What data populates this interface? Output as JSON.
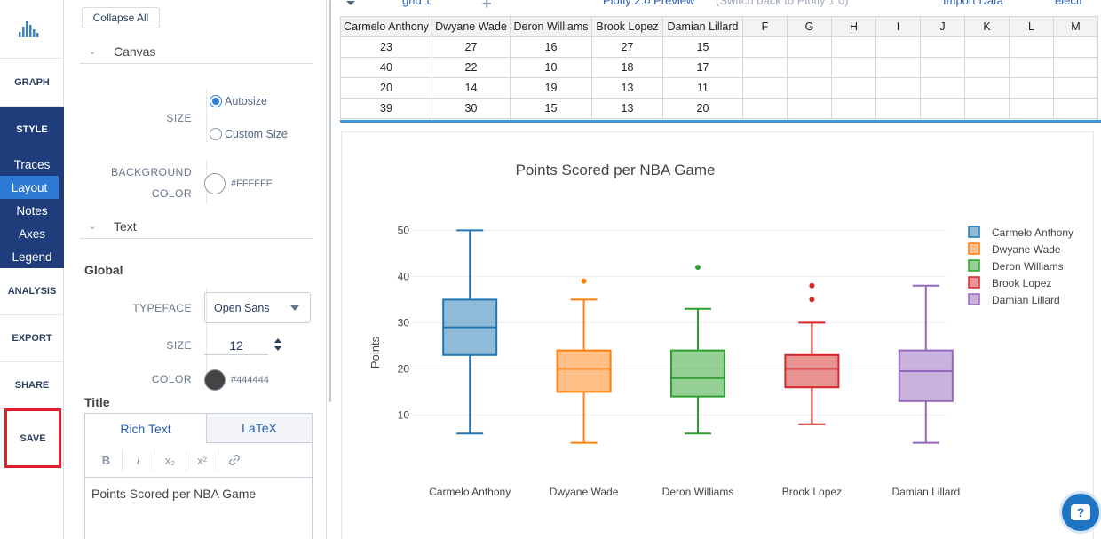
{
  "nav": {
    "graph": "GRAPH",
    "style": "STYLE",
    "style_items": [
      "Traces",
      "Layout",
      "Notes",
      "Axes",
      "Legend"
    ],
    "active_item": "Layout",
    "analysis": "ANALYSIS",
    "export": "EXPORT",
    "share": "SHARE",
    "save": "SAVE"
  },
  "panel": {
    "collapse_all": "Collapse All",
    "canvas": {
      "title": "Canvas",
      "size_label": "SIZE",
      "size_options": [
        "Autosize",
        "Custom Size"
      ],
      "size_selected": "Autosize",
      "bg_label_1": "BACKGROUND",
      "bg_label_2": "COLOR",
      "bg_hex": "#FFFFFF",
      "bg_color": "#ffffff"
    },
    "text": {
      "title": "Text",
      "global_label": "Global",
      "typeface_label": "TYPEFACE",
      "typeface_value": "Open Sans",
      "size_label": "SIZE",
      "size_value": "12",
      "color_label": "COLOR",
      "color_hex": "#444444",
      "color": "#444444"
    },
    "title_section": {
      "label": "Title",
      "tab_rich": "Rich Text",
      "tab_latex": "LaTeX",
      "toolbar": [
        "B",
        "I",
        "x₂",
        "x²",
        "link-icon"
      ],
      "content": "Points Scored per NBA Game"
    }
  },
  "grid": {
    "tab_name": "grid 1",
    "preview_link": "Plotly 2.0 Preview",
    "switch_back": "(Switch back to Plotly 1.0)",
    "import_data": "Import Data",
    "electric": "electr",
    "columns": [
      "Carmelo Anthony",
      "Dwyane Wade",
      "Deron Williams",
      "Brook Lopez",
      "Damian Lillard",
      "F",
      "G",
      "H",
      "I",
      "J",
      "K",
      "L",
      "M"
    ],
    "rows": [
      [
        "23",
        "27",
        "16",
        "27",
        "15"
      ],
      [
        "40",
        "22",
        "10",
        "18",
        "17"
      ],
      [
        "20",
        "14",
        "19",
        "13",
        "11"
      ],
      [
        "39",
        "30",
        "15",
        "13",
        "20"
      ]
    ]
  },
  "chart_data": {
    "type": "box",
    "title": "Points Scored per NBA Game",
    "ylabel": "Points",
    "ylim": [
      2,
      52
    ],
    "yticks": [
      10,
      20,
      30,
      40,
      50
    ],
    "grid": true,
    "legend_position": "top-right",
    "series": [
      {
        "name": "Carmelo Anthony",
        "color": "#1f77b4",
        "min": 6,
        "q1": 23,
        "median": 29,
        "q3": 35,
        "max": 50,
        "outliers": []
      },
      {
        "name": "Dwyane Wade",
        "color": "#ff7f0e",
        "min": 4,
        "q1": 15,
        "median": 20,
        "q3": 24,
        "max": 35,
        "outliers": [
          39
        ]
      },
      {
        "name": "Deron Williams",
        "color": "#2ca02c",
        "min": 6,
        "q1": 14,
        "median": 18,
        "q3": 24,
        "max": 33,
        "outliers": [
          42
        ]
      },
      {
        "name": "Brook Lopez",
        "color": "#d62728",
        "min": 8,
        "q1": 16,
        "median": 20,
        "q3": 23,
        "max": 30,
        "outliers": [
          35,
          38
        ]
      },
      {
        "name": "Damian Lillard",
        "color": "#9467bd",
        "min": 4,
        "q1": 13,
        "median": 19.5,
        "q3": 24,
        "max": 38,
        "outliers": []
      }
    ]
  }
}
